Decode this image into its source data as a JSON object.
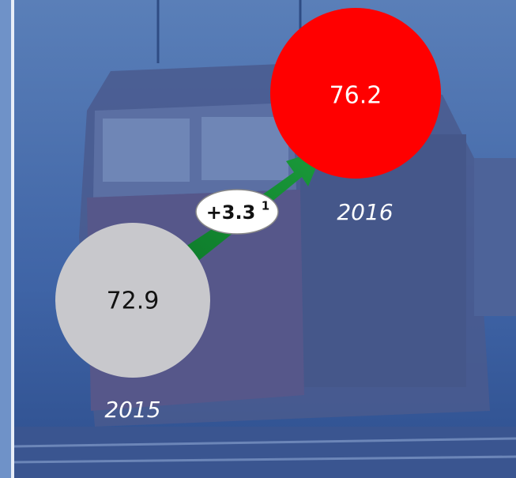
{
  "items": [
    {
      "value": "72.9",
      "year": "2015"
    },
    {
      "value": "76.2",
      "year": "2016"
    }
  ],
  "change": {
    "value": "+3.3",
    "footnote": "1"
  }
}
